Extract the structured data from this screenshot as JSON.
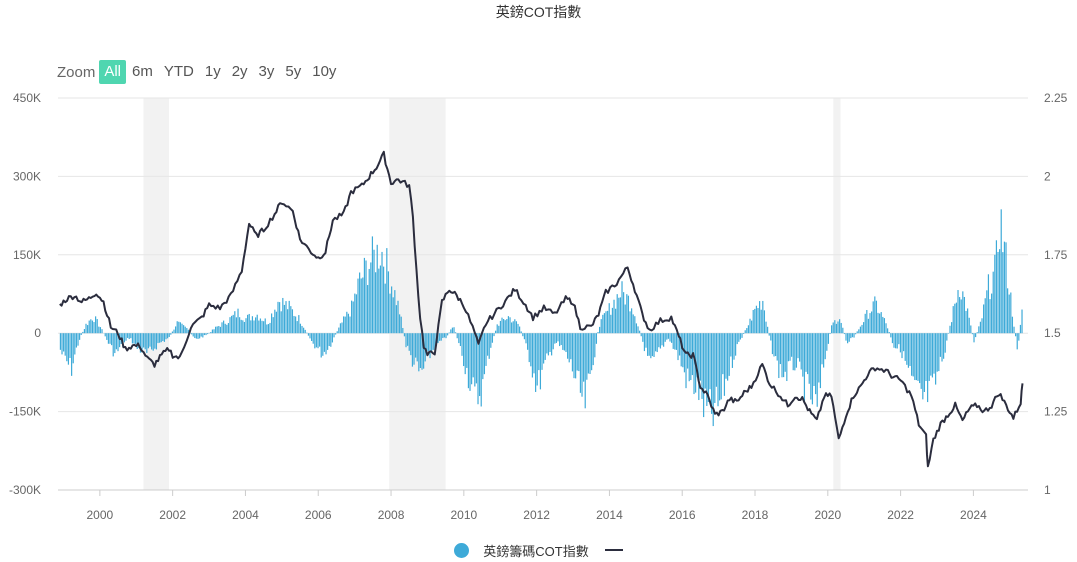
{
  "title": "英鎊COT指數",
  "zoom": {
    "label": "Zoom",
    "buttons": [
      "All",
      "6m",
      "YTD",
      "1y",
      "2y",
      "3y",
      "5y",
      "10y"
    ],
    "active": "All"
  },
  "legend": {
    "series_label": "英鎊籌碼COT指數",
    "line_label": ""
  },
  "colors": {
    "bars": "#3eaad8",
    "line": "#2b2d3e",
    "recession": "#f2f2f2",
    "active_zoom": "#4fd6b0"
  },
  "chart_data": {
    "type": "bar+line",
    "title": "英鎊COT指數",
    "x_range": [
      1998.85,
      2025.5
    ],
    "x_ticks": [
      "2000",
      "2002",
      "2004",
      "2006",
      "2008",
      "2010",
      "2012",
      "2014",
      "2016",
      "2018",
      "2020",
      "2022",
      "2024"
    ],
    "y_left": {
      "range": [
        -300000,
        450000
      ],
      "ticks": [
        "-300K",
        "-150K",
        "0",
        "150K",
        "300K",
        "450K"
      ]
    },
    "y_right": {
      "range": [
        1,
        2.25
      ],
      "ticks": [
        "1",
        "1.25",
        "1.5",
        "1.75",
        "2",
        "2.25"
      ]
    },
    "shaded_periods": [
      [
        2001.2,
        2001.9
      ],
      [
        2007.95,
        2009.5
      ],
      [
        2020.15,
        2020.35
      ]
    ],
    "grid": "horizontal",
    "legend_position": "bottom",
    "series": [
      {
        "name": "英鎊籌碼COT指數",
        "type": "column",
        "axis": "left",
        "points": [
          [
            1998.9,
            -40000
          ],
          [
            1999.0,
            -60000
          ],
          [
            1999.2,
            -85000
          ],
          [
            1999.4,
            -20000
          ],
          [
            1999.6,
            20000
          ],
          [
            1999.8,
            40000
          ],
          [
            2000.0,
            15000
          ],
          [
            2000.2,
            -20000
          ],
          [
            2000.4,
            -50000
          ],
          [
            2000.6,
            -30000
          ],
          [
            2000.8,
            -10000
          ],
          [
            2001.0,
            -35000
          ],
          [
            2001.3,
            -50000
          ],
          [
            2001.6,
            -25000
          ],
          [
            2001.9,
            -10000
          ],
          [
            2002.1,
            25000
          ],
          [
            2002.4,
            10000
          ],
          [
            2002.6,
            -15000
          ],
          [
            2002.9,
            -5000
          ],
          [
            2003.2,
            15000
          ],
          [
            2003.5,
            30000
          ],
          [
            2003.8,
            50000
          ],
          [
            2004.0,
            35000
          ],
          [
            2004.3,
            45000
          ],
          [
            2004.6,
            25000
          ],
          [
            2004.9,
            80000
          ],
          [
            2005.2,
            60000
          ],
          [
            2005.5,
            30000
          ],
          [
            2005.8,
            -20000
          ],
          [
            2006.1,
            -50000
          ],
          [
            2006.3,
            -30000
          ],
          [
            2006.6,
            20000
          ],
          [
            2006.9,
            60000
          ],
          [
            2007.1,
            120000
          ],
          [
            2007.4,
            170000
          ],
          [
            2007.7,
            200000
          ],
          [
            2007.9,
            150000
          ],
          [
            2008.2,
            60000
          ],
          [
            2008.4,
            -30000
          ],
          [
            2008.6,
            -70000
          ],
          [
            2008.8,
            -100000
          ],
          [
            2009.0,
            -60000
          ],
          [
            2009.2,
            -30000
          ],
          [
            2009.5,
            -10000
          ],
          [
            2009.7,
            20000
          ],
          [
            2009.9,
            -40000
          ],
          [
            2010.1,
            -100000
          ],
          [
            2010.3,
            -160000
          ],
          [
            2010.5,
            -130000
          ],
          [
            2010.7,
            -40000
          ],
          [
            2010.9,
            20000
          ],
          [
            2011.2,
            40000
          ],
          [
            2011.5,
            20000
          ],
          [
            2011.8,
            -60000
          ],
          [
            2012.0,
            -130000
          ],
          [
            2012.2,
            -80000
          ],
          [
            2012.5,
            -20000
          ],
          [
            2012.7,
            -40000
          ],
          [
            2012.9,
            -70000
          ],
          [
            2013.1,
            -120000
          ],
          [
            2013.3,
            -175000
          ],
          [
            2013.5,
            -90000
          ],
          [
            2013.7,
            20000
          ],
          [
            2014.0,
            60000
          ],
          [
            2014.3,
            100000
          ],
          [
            2014.6,
            70000
          ],
          [
            2014.9,
            -20000
          ],
          [
            2015.1,
            -80000
          ],
          [
            2015.3,
            -50000
          ],
          [
            2015.6,
            -10000
          ],
          [
            2015.9,
            -60000
          ],
          [
            2016.1,
            -110000
          ],
          [
            2016.4,
            -130000
          ],
          [
            2016.6,
            -180000
          ],
          [
            2016.8,
            -200000
          ],
          [
            2017.0,
            -170000
          ],
          [
            2017.3,
            -80000
          ],
          [
            2017.5,
            -30000
          ],
          [
            2017.8,
            20000
          ],
          [
            2018.0,
            60000
          ],
          [
            2018.2,
            80000
          ],
          [
            2018.4,
            -20000
          ],
          [
            2018.6,
            -80000
          ],
          [
            2018.8,
            -100000
          ],
          [
            2019.1,
            -70000
          ],
          [
            2019.3,
            -120000
          ],
          [
            2019.5,
            -150000
          ],
          [
            2019.7,
            -180000
          ],
          [
            2019.9,
            -60000
          ],
          [
            2020.1,
            20000
          ],
          [
            2020.3,
            40000
          ],
          [
            2020.5,
            -20000
          ],
          [
            2020.7,
            -10000
          ],
          [
            2020.9,
            20000
          ],
          [
            2021.1,
            50000
          ],
          [
            2021.3,
            70000
          ],
          [
            2021.6,
            20000
          ],
          [
            2021.8,
            -30000
          ],
          [
            2022.0,
            -40000
          ],
          [
            2022.2,
            -90000
          ],
          [
            2022.4,
            -140000
          ],
          [
            2022.6,
            -160000
          ],
          [
            2022.9,
            -130000
          ],
          [
            2023.2,
            -40000
          ],
          [
            2023.4,
            40000
          ],
          [
            2023.6,
            120000
          ],
          [
            2023.8,
            60000
          ],
          [
            2024.0,
            -20000
          ],
          [
            2024.2,
            30000
          ],
          [
            2024.4,
            110000
          ],
          [
            2024.6,
            150000
          ],
          [
            2024.7,
            280000
          ],
          [
            2024.9,
            160000
          ],
          [
            2025.1,
            20000
          ],
          [
            2025.2,
            -40000
          ],
          [
            2025.35,
            80000
          ]
        ]
      },
      {
        "name": "",
        "type": "line",
        "axis": "right",
        "points": [
          [
            1998.9,
            1.59
          ],
          [
            1999.1,
            1.61
          ],
          [
            1999.3,
            1.62
          ],
          [
            1999.5,
            1.6
          ],
          [
            1999.7,
            1.61
          ],
          [
            1999.9,
            1.63
          ],
          [
            2000.1,
            1.6
          ],
          [
            2000.3,
            1.52
          ],
          [
            2000.5,
            1.5
          ],
          [
            2000.7,
            1.45
          ],
          [
            2000.9,
            1.46
          ],
          [
            2001.1,
            1.46
          ],
          [
            2001.3,
            1.42
          ],
          [
            2001.5,
            1.4
          ],
          [
            2001.7,
            1.43
          ],
          [
            2001.9,
            1.45
          ],
          [
            2002.0,
            1.43
          ],
          [
            2002.2,
            1.42
          ],
          [
            2002.5,
            1.52
          ],
          [
            2002.8,
            1.55
          ],
          [
            2003.0,
            1.59
          ],
          [
            2003.3,
            1.58
          ],
          [
            2003.6,
            1.62
          ],
          [
            2003.9,
            1.7
          ],
          [
            2004.1,
            1.85
          ],
          [
            2004.3,
            1.81
          ],
          [
            2004.5,
            1.83
          ],
          [
            2004.8,
            1.88
          ],
          [
            2005.0,
            1.92
          ],
          [
            2005.3,
            1.89
          ],
          [
            2005.5,
            1.8
          ],
          [
            2005.8,
            1.76
          ],
          [
            2006.0,
            1.74
          ],
          [
            2006.2,
            1.76
          ],
          [
            2006.4,
            1.86
          ],
          [
            2006.7,
            1.88
          ],
          [
            2006.9,
            1.95
          ],
          [
            2007.2,
            1.97
          ],
          [
            2007.4,
            2.0
          ],
          [
            2007.6,
            2.03
          ],
          [
            2007.8,
            2.07
          ],
          [
            2008.0,
            1.98
          ],
          [
            2008.2,
            1.99
          ],
          [
            2008.5,
            1.97
          ],
          [
            2008.6,
            1.87
          ],
          [
            2008.7,
            1.7
          ],
          [
            2008.8,
            1.55
          ],
          [
            2008.9,
            1.46
          ],
          [
            2009.0,
            1.43
          ],
          [
            2009.2,
            1.44
          ],
          [
            2009.4,
            1.6
          ],
          [
            2009.6,
            1.64
          ],
          [
            2009.8,
            1.62
          ],
          [
            2010.0,
            1.59
          ],
          [
            2010.3,
            1.5
          ],
          [
            2010.4,
            1.46
          ],
          [
            2010.6,
            1.53
          ],
          [
            2010.9,
            1.57
          ],
          [
            2011.2,
            1.61
          ],
          [
            2011.4,
            1.64
          ],
          [
            2011.7,
            1.59
          ],
          [
            2011.9,
            1.55
          ],
          [
            2012.2,
            1.58
          ],
          [
            2012.5,
            1.56
          ],
          [
            2012.8,
            1.61
          ],
          [
            2013.0,
            1.6
          ],
          [
            2013.2,
            1.52
          ],
          [
            2013.5,
            1.52
          ],
          [
            2013.7,
            1.56
          ],
          [
            2013.9,
            1.63
          ],
          [
            2014.2,
            1.66
          ],
          [
            2014.5,
            1.71
          ],
          [
            2014.7,
            1.64
          ],
          [
            2014.9,
            1.56
          ],
          [
            2015.1,
            1.51
          ],
          [
            2015.4,
            1.54
          ],
          [
            2015.7,
            1.55
          ],
          [
            2015.9,
            1.49
          ],
          [
            2016.1,
            1.43
          ],
          [
            2016.3,
            1.43
          ],
          [
            2016.5,
            1.33
          ],
          [
            2016.7,
            1.3
          ],
          [
            2016.9,
            1.24
          ],
          [
            2017.1,
            1.25
          ],
          [
            2017.3,
            1.29
          ],
          [
            2017.5,
            1.28
          ],
          [
            2017.7,
            1.31
          ],
          [
            2017.9,
            1.33
          ],
          [
            2018.2,
            1.4
          ],
          [
            2018.4,
            1.34
          ],
          [
            2018.7,
            1.3
          ],
          [
            2018.9,
            1.27
          ],
          [
            2019.1,
            1.3
          ],
          [
            2019.3,
            1.29
          ],
          [
            2019.5,
            1.25
          ],
          [
            2019.7,
            1.22
          ],
          [
            2019.9,
            1.3
          ],
          [
            2020.1,
            1.3
          ],
          [
            2020.3,
            1.16
          ],
          [
            2020.5,
            1.24
          ],
          [
            2020.7,
            1.3
          ],
          [
            2020.9,
            1.33
          ],
          [
            2021.1,
            1.37
          ],
          [
            2021.3,
            1.39
          ],
          [
            2021.6,
            1.38
          ],
          [
            2021.8,
            1.36
          ],
          [
            2022.0,
            1.35
          ],
          [
            2022.3,
            1.3
          ],
          [
            2022.5,
            1.21
          ],
          [
            2022.7,
            1.17
          ],
          [
            2022.75,
            1.07
          ],
          [
            2022.9,
            1.16
          ],
          [
            2023.1,
            1.21
          ],
          [
            2023.3,
            1.24
          ],
          [
            2023.5,
            1.27
          ],
          [
            2023.7,
            1.22
          ],
          [
            2023.9,
            1.26
          ],
          [
            2024.1,
            1.27
          ],
          [
            2024.3,
            1.25
          ],
          [
            2024.5,
            1.27
          ],
          [
            2024.7,
            1.31
          ],
          [
            2024.9,
            1.27
          ],
          [
            2025.0,
            1.25
          ],
          [
            2025.1,
            1.23
          ],
          [
            2025.3,
            1.28
          ],
          [
            2025.35,
            1.34
          ]
        ]
      }
    ]
  }
}
